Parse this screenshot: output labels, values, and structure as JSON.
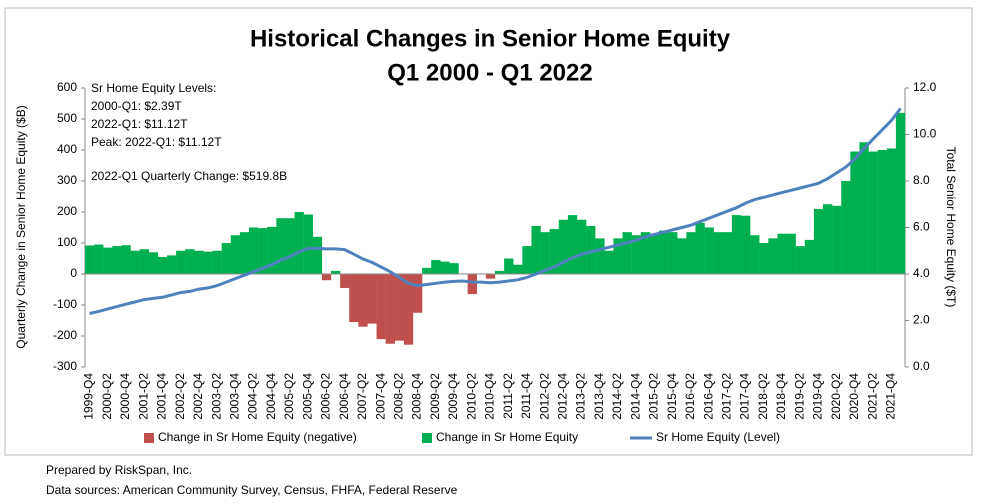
{
  "chart_data": {
    "type": "bar+line",
    "title": [
      "Historical Changes in Senior Home Equity",
      "Q1 2000 - Q1 2022"
    ],
    "annotations": [
      "Sr Home Equity Levels:",
      "2000-Q1: $2.39T",
      "2022-Q1: $11.12T",
      "Peak: 2022-Q1: $11.12T",
      "2022-Q1 Quarterly Change: $519.8B"
    ],
    "footer": [
      "Prepared by RiskSpan, Inc.",
      "Data sources: American Community Survey, Census, FHFA, Federal Reserve"
    ],
    "ylabel": "Quarterly Change in Senior Home Equity ($B)",
    "y2label": "Total Senior Home Equity ($T)",
    "categories": [
      "1999-Q4",
      null,
      "2000-Q2",
      null,
      "2000-Q4",
      null,
      "2001-Q2",
      null,
      "2001-Q4",
      null,
      "2002-Q2",
      null,
      "2002-Q4",
      null,
      "2003-Q2",
      null,
      "2003-Q4",
      null,
      "2004-Q2",
      null,
      "2004-Q4",
      null,
      "2005-Q2",
      null,
      "2005-Q4",
      null,
      "2006-Q2",
      null,
      "2006-Q4",
      null,
      "2007-Q2",
      null,
      "2007-Q4",
      null,
      "2008-Q2",
      null,
      "2008-Q4",
      null,
      "2009-Q2",
      null,
      "2009-Q4",
      null,
      "2010-Q2",
      null,
      "2010-Q4",
      null,
      "2011-Q2",
      null,
      "2011-Q4",
      null,
      "2012-Q2",
      null,
      "2012-Q4",
      null,
      "2013-Q2",
      null,
      "2013-Q4",
      null,
      "2014-Q2",
      null,
      "2014-Q4",
      null,
      "2015-Q2",
      null,
      "2015-Q4",
      null,
      "2016-Q2",
      null,
      "2016-Q4",
      null,
      "2017-Q2",
      null,
      "2017-Q4",
      null,
      "2018-Q2",
      null,
      "2018-Q4",
      null,
      "2019-Q2",
      null,
      "2019-Q4",
      null,
      "2020-Q2",
      null,
      "2020-Q4",
      null,
      "2021-Q2",
      null,
      "2021-Q4",
      null
    ],
    "series": [
      {
        "name": "Change in Sr Home Equity (negative)",
        "kind": "bar",
        "color": "#c0504d",
        "values": [
          null,
          null,
          null,
          null,
          null,
          null,
          null,
          null,
          null,
          null,
          null,
          null,
          null,
          null,
          null,
          null,
          null,
          null,
          null,
          null,
          null,
          null,
          null,
          null,
          null,
          null,
          -20,
          null,
          -45,
          -155,
          -170,
          -160,
          -210,
          -225,
          -215,
          -228,
          -125,
          null,
          null,
          null,
          null,
          null,
          -65,
          null,
          -15,
          null,
          null,
          null,
          null,
          null,
          null,
          null,
          null,
          null,
          null,
          null,
          null,
          null,
          null,
          null,
          null,
          null,
          null,
          null,
          null,
          null,
          null,
          null,
          null,
          null,
          null,
          null,
          null,
          null,
          null,
          null,
          null,
          null,
          null,
          null,
          null,
          null,
          null,
          null,
          null,
          null,
          null,
          null,
          null,
          null
        ]
      },
      {
        "name": "Change in Sr Home Equity",
        "kind": "bar",
        "color": "#00b050",
        "values": [
          92,
          95,
          85,
          90,
          93,
          75,
          80,
          70,
          55,
          60,
          75,
          80,
          75,
          72,
          75,
          100,
          125,
          135,
          150,
          148,
          152,
          180,
          180,
          200,
          192,
          120,
          null,
          10,
          null,
          null,
          null,
          null,
          null,
          null,
          null,
          null,
          null,
          20,
          45,
          40,
          35,
          0,
          null,
          0,
          null,
          10,
          50,
          30,
          90,
          155,
          135,
          145,
          175,
          190,
          175,
          155,
          115,
          75,
          115,
          135,
          125,
          135,
          130,
          140,
          135,
          115,
          135,
          165,
          150,
          135,
          135,
          190,
          188,
          125,
          100,
          115,
          130,
          130,
          90,
          110,
          210,
          225,
          220,
          300,
          395,
          425,
          395,
          400,
          405,
          519.8
        ]
      },
      {
        "name": "Sr Home Equity (Level)",
        "kind": "line",
        "axis": "y2",
        "color": "#4f81bd",
        "values": [
          2.3,
          2.39,
          2.5,
          2.6,
          2.7,
          2.8,
          2.9,
          2.95,
          3.0,
          3.1,
          3.2,
          3.25,
          3.35,
          3.4,
          3.5,
          3.65,
          3.8,
          3.95,
          4.1,
          4.25,
          4.4,
          4.6,
          4.75,
          4.95,
          5.1,
          5.1,
          5.08,
          5.08,
          5.05,
          4.85,
          4.65,
          4.5,
          4.3,
          4.1,
          3.85,
          3.6,
          3.5,
          3.55,
          3.6,
          3.65,
          3.68,
          3.7,
          3.65,
          3.65,
          3.62,
          3.65,
          3.7,
          3.75,
          3.85,
          4.0,
          4.15,
          4.3,
          4.5,
          4.7,
          4.85,
          4.95,
          5.05,
          5.15,
          5.25,
          5.35,
          5.45,
          5.6,
          5.7,
          5.8,
          5.9,
          6.0,
          6.1,
          6.25,
          6.4,
          6.55,
          6.7,
          6.85,
          7.05,
          7.2,
          7.3,
          7.4,
          7.5,
          7.6,
          7.7,
          7.8,
          7.9,
          8.1,
          8.35,
          8.6,
          8.95,
          9.4,
          9.8,
          10.2,
          10.6,
          11.12
        ]
      }
    ],
    "ylim": [
      -300,
      600
    ],
    "yticks": [
      -300,
      -200,
      -100,
      0,
      100,
      200,
      300,
      400,
      500,
      600
    ],
    "y2lim": [
      0,
      12
    ],
    "y2ticks": [
      {
        "value": 0,
        "label": "0.0"
      },
      {
        "value": 2,
        "label": "2.0"
      },
      {
        "value": 4,
        "label": "4.0"
      },
      {
        "value": 6,
        "label": "6.0"
      },
      {
        "value": 8,
        "label": "8.0"
      },
      {
        "value": 10,
        "label": "10.0"
      },
      {
        "value": 12,
        "label": "12.0"
      }
    ],
    "legend": "bottom"
  }
}
